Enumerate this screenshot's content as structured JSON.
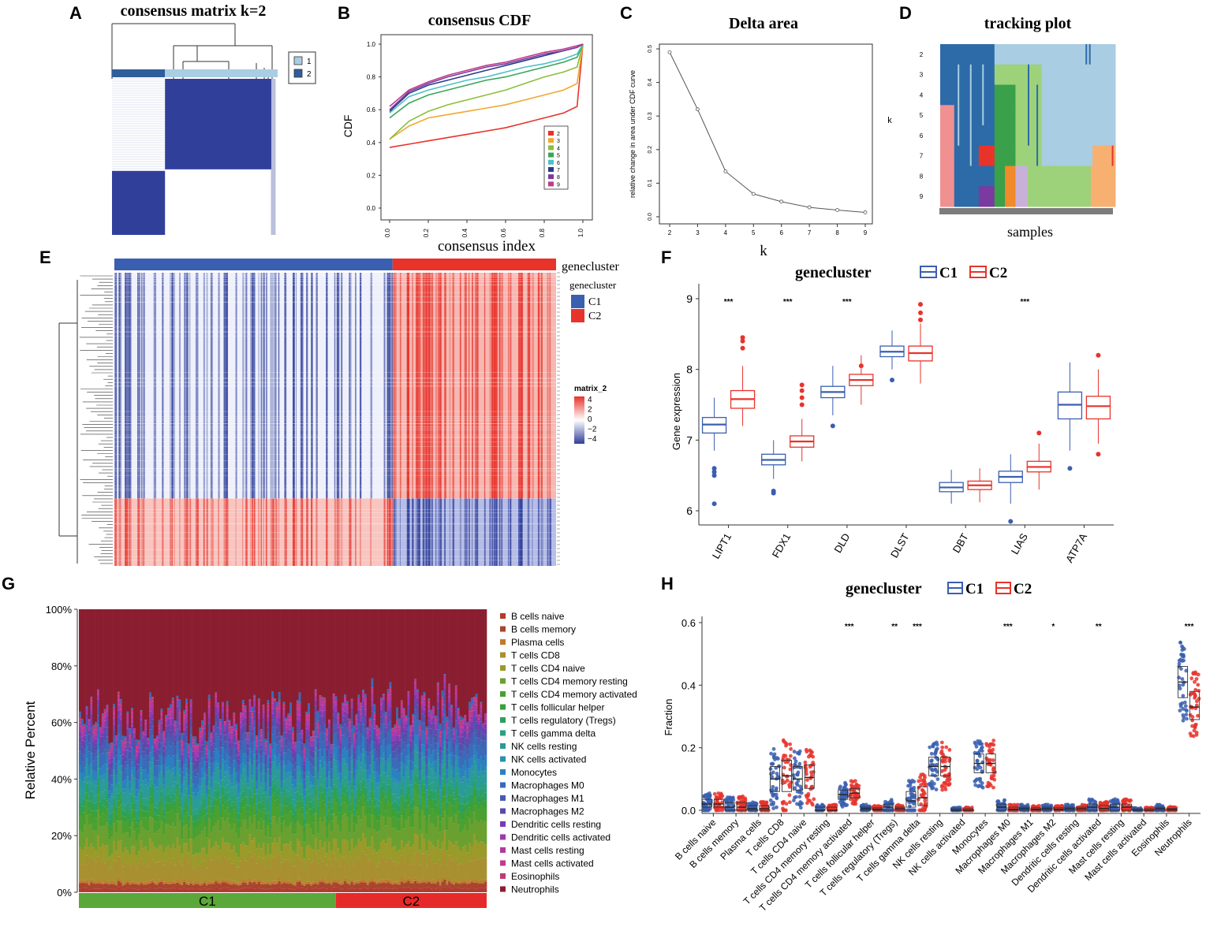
{
  "colors": {
    "c1_blue": "#3a5fb0",
    "c2_red": "#e8332b",
    "heat_blue": "#2f3f9a",
    "heat_light": "#a9cde3",
    "green_bar": "#5aa83a",
    "red_bar": "#e62a2a"
  },
  "chart_data": [
    {
      "id": "A",
      "type": "heatmap",
      "panel_label": "A",
      "title": "consensus matrix k=2",
      "legend": [
        "1",
        "2"
      ],
      "legend_placement": "right",
      "cluster_fractions": [
        0.32,
        0.68
      ]
    },
    {
      "id": "B",
      "type": "line",
      "panel_label": "B",
      "title": "consensus CDF",
      "xlabel": "consensus index",
      "ylabel": "CDF",
      "xlim": [
        0,
        1
      ],
      "ylim": [
        0,
        1
      ],
      "xticks": [
        "0.0",
        "0.2",
        "0.4",
        "0.6",
        "0.8",
        "1.0"
      ],
      "yticks": [
        "0.0",
        "0.2",
        "0.4",
        "0.6",
        "0.8",
        "1.0"
      ],
      "legend_placement": "bottom-right",
      "x": [
        0.0,
        0.1,
        0.2,
        0.3,
        0.4,
        0.5,
        0.6,
        0.7,
        0.8,
        0.9,
        0.97,
        1.0
      ],
      "series": [
        {
          "name": "2",
          "color": "#e8332b",
          "values": [
            0.37,
            0.39,
            0.41,
            0.43,
            0.45,
            0.47,
            0.49,
            0.52,
            0.55,
            0.58,
            0.62,
            1.0
          ]
        },
        {
          "name": "3",
          "color": "#f0a830",
          "values": [
            0.42,
            0.5,
            0.55,
            0.57,
            0.59,
            0.61,
            0.63,
            0.66,
            0.69,
            0.72,
            0.76,
            1.0
          ]
        },
        {
          "name": "4",
          "color": "#8cbf3a",
          "values": [
            0.42,
            0.53,
            0.59,
            0.63,
            0.66,
            0.69,
            0.72,
            0.76,
            0.8,
            0.83,
            0.86,
            1.0
          ]
        },
        {
          "name": "5",
          "color": "#3aa55a",
          "values": [
            0.55,
            0.64,
            0.69,
            0.72,
            0.75,
            0.78,
            0.8,
            0.83,
            0.86,
            0.89,
            0.92,
            1.0
          ]
        },
        {
          "name": "6",
          "color": "#4ec0c8",
          "values": [
            0.58,
            0.68,
            0.72,
            0.75,
            0.78,
            0.8,
            0.83,
            0.86,
            0.88,
            0.91,
            0.94,
            1.0
          ]
        },
        {
          "name": "7",
          "color": "#2a3a8a",
          "values": [
            0.59,
            0.7,
            0.75,
            0.78,
            0.81,
            0.84,
            0.87,
            0.9,
            0.93,
            0.96,
            0.98,
            1.0
          ]
        },
        {
          "name": "8",
          "color": "#7a3aa0",
          "values": [
            0.6,
            0.71,
            0.76,
            0.8,
            0.83,
            0.86,
            0.88,
            0.91,
            0.94,
            0.96,
            0.98,
            1.0
          ]
        },
        {
          "name": "9",
          "color": "#c03a8a",
          "values": [
            0.62,
            0.72,
            0.77,
            0.81,
            0.84,
            0.87,
            0.89,
            0.92,
            0.95,
            0.97,
            0.99,
            1.0
          ]
        }
      ]
    },
    {
      "id": "C",
      "type": "line",
      "panel_label": "C",
      "title": "Delta area",
      "xlabel": "k",
      "ylabel": "relative change in area under CDF curve",
      "x": [
        2,
        3,
        4,
        5,
        6,
        7,
        8,
        9
      ],
      "values": [
        0.49,
        0.32,
        0.135,
        0.068,
        0.045,
        0.028,
        0.02,
        0.013
      ],
      "xlim": [
        2,
        9
      ],
      "ylim": [
        0,
        0.5
      ],
      "yticks": [
        "0.0",
        "0.1",
        "0.2",
        "0.3",
        "0.4",
        "0.5"
      ]
    },
    {
      "id": "D",
      "type": "heatmap",
      "panel_label": "D",
      "title": "tracking plot",
      "xlabel": "samples",
      "ylabel": "k",
      "rows": [
        "2",
        "3",
        "4",
        "5",
        "6",
        "7",
        "8",
        "9"
      ]
    },
    {
      "id": "E",
      "type": "heatmap",
      "panel_label": "E",
      "annotation_title": "genecluster",
      "legend_title": "genecluster",
      "groups": [
        "C1",
        "C2"
      ],
      "group_fractions": [
        0.63,
        0.37
      ],
      "scale_title": "matrix_2",
      "scale_ticks": [
        "4",
        "2",
        "0",
        "−2",
        "−4"
      ]
    },
    {
      "id": "F",
      "type": "bar",
      "subtype": "boxplot",
      "panel_label": "F",
      "legend_title": "genecluster",
      "legend": [
        "C1",
        "C2"
      ],
      "ylabel": "Gene expression",
      "ylim": [
        5.8,
        9.1
      ],
      "yticks": [
        "6",
        "7",
        "8",
        "9"
      ],
      "categories": [
        "LIPT1",
        "FDX1",
        "DLD",
        "DLST",
        "DBT",
        "LIAS",
        "ATP7A"
      ],
      "significance": [
        "***",
        "***",
        "***",
        "",
        "",
        "***",
        ""
      ],
      "series": [
        {
          "name": "C1",
          "boxes": [
            [
              6.85,
              7.1,
              7.22,
              7.32,
              7.6
            ],
            [
              6.45,
              6.65,
              6.72,
              6.8,
              7.0
            ],
            [
              7.35,
              7.6,
              7.68,
              7.76,
              8.05
            ],
            [
              8.0,
              8.18,
              8.25,
              8.33,
              8.55
            ],
            [
              6.1,
              6.27,
              6.33,
              6.4,
              6.58
            ],
            [
              6.1,
              6.4,
              6.48,
              6.56,
              6.8
            ],
            [
              6.85,
              7.3,
              7.5,
              7.68,
              8.1
            ]
          ],
          "outliers": [
            [
              6.55,
              6.6,
              6.5,
              6.1
            ],
            [
              6.25,
              6.28
            ],
            [
              7.2
            ],
            [
              7.85
            ],
            [],
            [
              5.85
            ],
            [
              6.6
            ]
          ]
        },
        {
          "name": "C2",
          "boxes": [
            [
              7.2,
              7.45,
              7.58,
              7.7,
              8.05
            ],
            [
              6.7,
              6.9,
              6.98,
              7.06,
              7.3
            ],
            [
              7.5,
              7.77,
              7.85,
              7.93,
              8.2
            ],
            [
              7.8,
              8.12,
              8.23,
              8.33,
              8.65
            ],
            [
              6.12,
              6.3,
              6.36,
              6.42,
              6.6
            ],
            [
              6.3,
              6.55,
              6.62,
              6.7,
              6.95
            ],
            [
              6.95,
              7.3,
              7.48,
              7.62,
              8.0
            ]
          ],
          "outliers": [
            [
              8.3,
              8.4,
              8.45
            ],
            [
              7.5,
              7.6,
              7.7,
              7.78
            ],
            [
              8.05
            ],
            [
              8.7,
              8.8,
              8.92
            ],
            [],
            [
              7.1
            ],
            [
              8.2,
              6.8
            ]
          ]
        }
      ]
    },
    {
      "id": "G",
      "type": "bar",
      "subtype": "stacked-100",
      "panel_label": "G",
      "ylabel": "Relative Percent",
      "yticks": [
        "0%",
        "20%",
        "40%",
        "60%",
        "80%",
        "100%"
      ],
      "groups": [
        "C1",
        "C2"
      ],
      "group_fractions": [
        0.63,
        0.37
      ],
      "legend_placement": "right",
      "legend": [
        {
          "name": "B cells naive",
          "color": "#b23a2e"
        },
        {
          "name": "B cells memory",
          "color": "#a8452f"
        },
        {
          "name": "Plasma cells",
          "color": "#c07a30"
        },
        {
          "name": "T cells CD8",
          "color": "#a89030"
        },
        {
          "name": "T cells CD4 naive",
          "color": "#9a9a2a"
        },
        {
          "name": "T cells CD4 memory resting",
          "color": "#6aa030"
        },
        {
          "name": "T cells CD4 memory activated",
          "color": "#4aa030"
        },
        {
          "name": "T cells follicular helper",
          "color": "#3aa03a"
        },
        {
          "name": "T cells regulatory (Tregs)",
          "color": "#2aa060"
        },
        {
          "name": "T cells gamma delta",
          "color": "#2aa080"
        },
        {
          "name": "NK cells resting",
          "color": "#2a9a9a"
        },
        {
          "name": "NK cells activated",
          "color": "#2a90b0"
        },
        {
          "name": "Monocytes",
          "color": "#2a80c0"
        },
        {
          "name": "Macrophages M0",
          "color": "#3a6ab8"
        },
        {
          "name": "Macrophages M1",
          "color": "#4a5ab0"
        },
        {
          "name": "Macrophages M2",
          "color": "#5a4aa8"
        },
        {
          "name": "Dendritic cells resting",
          "color": "#7a3ab0"
        },
        {
          "name": "Dendritic cells activated",
          "color": "#9a3ab0"
        },
        {
          "name": "Mast cells resting",
          "color": "#b03aa0"
        },
        {
          "name": "Mast cells activated",
          "color": "#c03a90"
        },
        {
          "name": "Eosinophils",
          "color": "#c03a70"
        },
        {
          "name": "Neutrophils",
          "color": "#8a1e30"
        }
      ]
    },
    {
      "id": "H",
      "type": "scatter",
      "subtype": "boxplot-jitter",
      "panel_label": "H",
      "legend_title": "genecluster",
      "legend": [
        "C1",
        "C2"
      ],
      "ylabel": "Fraction",
      "ylim": [
        -0.01,
        0.62
      ],
      "yticks": [
        "0.0",
        "0.2",
        "0.4",
        "0.6"
      ],
      "categories": [
        "B cells naive",
        "B cells memory",
        "Plasma cells",
        "T cells CD8",
        "T cells CD4 naive",
        "T cells CD4 memory resting",
        "T cells CD4 memory activated",
        "T cells follicular helper",
        "T cells regulatory (Tregs)",
        "T cells gamma delta",
        "NK cells resting",
        "NK cells activated",
        "Monocytes",
        "Macrophages M0",
        "Macrophages M1",
        "Macrophages M2",
        "Dendritic cells resting",
        "Dendritic cells activated",
        "Mast cells resting",
        "Mast cells activated",
        "Eosinophils",
        "Neutrophils"
      ],
      "significance": [
        "",
        "",
        "",
        "",
        "",
        "",
        "***",
        "",
        "**",
        "***",
        "",
        "",
        "",
        "***",
        "",
        "*",
        "",
        "**",
        "",
        "",
        "",
        "***"
      ],
      "c1_medians": [
        0.02,
        0.01,
        0.005,
        0.1,
        0.1,
        0.0,
        0.05,
        0.005,
        0.01,
        0.03,
        0.14,
        0.0,
        0.15,
        0.01,
        0.005,
        0.005,
        0.005,
        0.01,
        0.01,
        0.0,
        0.005,
        0.41
      ],
      "c2_medians": [
        0.02,
        0.01,
        0.005,
        0.11,
        0.105,
        0.0,
        0.055,
        0.003,
        0.005,
        0.04,
        0.14,
        0.0,
        0.15,
        0.003,
        0.003,
        0.003,
        0.005,
        0.006,
        0.01,
        0.0,
        0.002,
        0.33
      ],
      "c1_q": [
        [
          0.01,
          0.035
        ],
        [
          0.0,
          0.025
        ],
        [
          0.0,
          0.015
        ],
        [
          0.06,
          0.14
        ],
        [
          0.065,
          0.14
        ],
        [
          0.0,
          0.01
        ],
        [
          0.035,
          0.065
        ],
        [
          0.0,
          0.01
        ],
        [
          0.0,
          0.02
        ],
        [
          0.01,
          0.06
        ],
        [
          0.11,
          0.17
        ],
        [
          0.0,
          0.005
        ],
        [
          0.12,
          0.18
        ],
        [
          0.0,
          0.02
        ],
        [
          0.0,
          0.01
        ],
        [
          0.0,
          0.01
        ],
        [
          0.0,
          0.01
        ],
        [
          0.0,
          0.02
        ],
        [
          0.0,
          0.02
        ],
        [
          0.0,
          0.005
        ],
        [
          0.0,
          0.01
        ],
        [
          0.36,
          0.46
        ]
      ],
      "c2_q": [
        [
          0.01,
          0.035
        ],
        [
          0.0,
          0.025
        ],
        [
          0.0,
          0.015
        ],
        [
          0.06,
          0.16
        ],
        [
          0.07,
          0.145
        ],
        [
          0.0,
          0.01
        ],
        [
          0.04,
          0.07
        ],
        [
          0.0,
          0.008
        ],
        [
          0.0,
          0.01
        ],
        [
          0.015,
          0.075
        ],
        [
          0.11,
          0.17
        ],
        [
          0.0,
          0.005
        ],
        [
          0.12,
          0.18
        ],
        [
          0.0,
          0.01
        ],
        [
          0.0,
          0.008
        ],
        [
          0.0,
          0.008
        ],
        [
          0.0,
          0.01
        ],
        [
          0.0,
          0.015
        ],
        [
          0.0,
          0.02
        ],
        [
          0.0,
          0.005
        ],
        [
          0.0,
          0.006
        ],
        [
          0.29,
          0.38
        ]
      ]
    }
  ]
}
